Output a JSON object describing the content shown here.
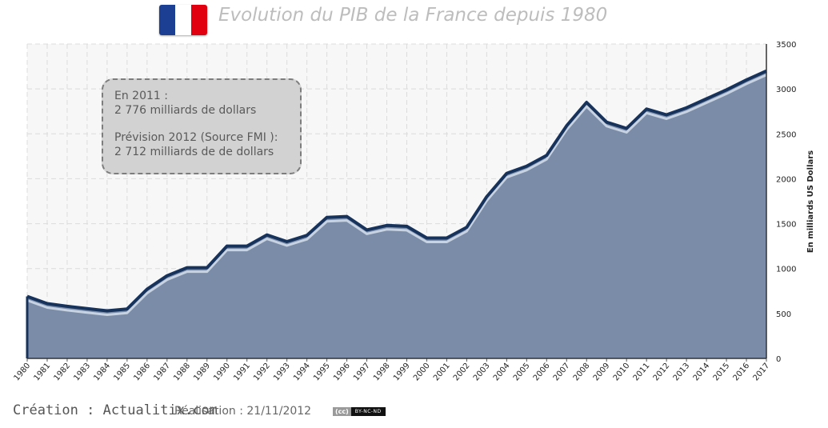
{
  "header": {
    "title": "Evolution du PIB de la France depuis 1980",
    "flag_colors": [
      "#1c3f94",
      "#ffffff",
      "#e1000f"
    ]
  },
  "annotation": {
    "line1": "En 2011 :",
    "line2": "2 776 milliards  de dollars",
    "line3": "Prévision 2012 (Source FMI ):",
    "line4": "2 712 milliards  de de dollars"
  },
  "footer": {
    "credit": "Création : Actualitix.com",
    "date": "Réalisation : 21/11/2012",
    "cc_label": "(cc)",
    "license": "BY-NC-ND"
  },
  "colors": {
    "area_fill": "#7a8ca8",
    "line": "#17335c",
    "plot_bg": "#f7f7f7",
    "grid": "#dcdcdc"
  },
  "chart_data": {
    "type": "area",
    "title": "Evolution du PIB de la France depuis 1980",
    "xlabel": "",
    "ylabel": "En milliards US Dollars",
    "x": [
      "1980",
      "1981",
      "1982",
      "1983",
      "1984",
      "1985",
      "1986",
      "1987",
      "1988",
      "1989",
      "1990",
      "1991",
      "1992",
      "1993",
      "1994",
      "1995",
      "1996",
      "1997",
      "1998",
      "1999",
      "2000",
      "2001",
      "2002",
      "2003",
      "2004",
      "2005",
      "2006",
      "2007",
      "2008",
      "2009",
      "2010",
      "2011",
      "2012",
      "2013",
      "2014",
      "2015",
      "2016",
      "2017"
    ],
    "series": [
      {
        "values": [
          690,
          610,
          580,
          555,
          530,
          550,
          770,
          920,
          1010,
          1010,
          1250,
          1250,
          1375,
          1300,
          1370,
          1570,
          1580,
          1430,
          1480,
          1470,
          1340,
          1340,
          1460,
          1800,
          2060,
          2140,
          2260,
          2590,
          2850,
          2630,
          2560,
          2776,
          2712,
          2790,
          2890,
          2990,
          3100,
          3200
        ]
      }
    ],
    "ylim": [
      0,
      3500
    ],
    "yticks": [
      0,
      500,
      1000,
      1500,
      2000,
      2500,
      3000,
      3500
    ],
    "y_axis_side": "right",
    "grid": true
  }
}
